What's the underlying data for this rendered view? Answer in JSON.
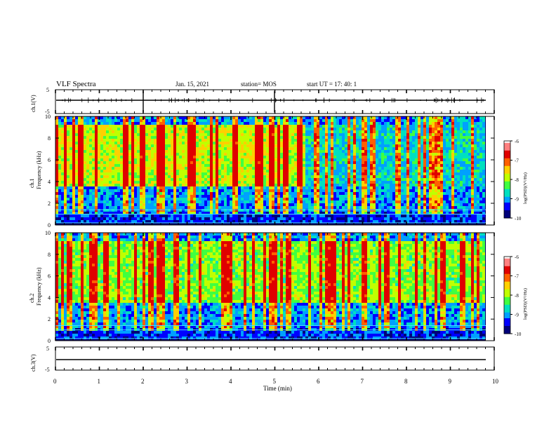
{
  "header": {
    "title": "VLF Spectra",
    "date": "Jan. 15, 2021",
    "station": "station= MOS",
    "start": "start  UT =   17: 40: 1"
  },
  "chart_data": [
    {
      "type": "line",
      "name": "ch1-waveform",
      "ylabel": "ch.1(V)",
      "ylim": [
        -5,
        5
      ],
      "yticks": [
        "5",
        "-5"
      ],
      "values_note": "",
      "baseline": -0.6
    },
    {
      "type": "heatmap",
      "name": "ch1-spectrogram",
      "ylabel": "ch.1\nFrequency (kHz)",
      "xlim": [
        0,
        10
      ],
      "ylim": [
        0,
        10
      ],
      "yticks": [
        "0",
        "2",
        "4",
        "6",
        "8",
        "10"
      ],
      "colorbar": {
        "label": "log(PSD)(V²/Hz)",
        "range": [
          -10,
          -6
        ],
        "ticks": [
          "-6",
          "-7",
          "-8",
          "-9",
          "-10"
        ]
      }
    },
    {
      "type": "heatmap",
      "name": "ch2-spectrogram",
      "ylabel": "ch.2\nFrequency (kHz)",
      "xlim": [
        0,
        10
      ],
      "ylim": [
        0,
        10
      ],
      "yticks": [
        "0",
        "2",
        "4",
        "6",
        "8",
        "10"
      ],
      "colorbar": {
        "label": "log(PSD)(V²/Hz)",
        "range": [
          -10,
          -6
        ],
        "ticks": [
          "-6",
          "-7",
          "-8",
          "-9",
          "-10"
        ]
      }
    },
    {
      "type": "line",
      "name": "ch3-waveform",
      "ylabel": "ch.3(V)",
      "ylim": [
        -5,
        5
      ],
      "yticks": [
        "5",
        "-5"
      ],
      "baseline": -1.0
    }
  ],
  "xaxis": {
    "label": "Time (min)",
    "ticks": [
      "0",
      "1",
      "2",
      "3",
      "4",
      "5",
      "6",
      "7",
      "8",
      "9",
      "10"
    ]
  },
  "colors": {
    "scale": [
      "#00007a",
      "#0000ff",
      "#00a0ff",
      "#00e0c0",
      "#40ff40",
      "#c0ff00",
      "#ffd000",
      "#ff6000",
      "#e00000",
      "#ff8080",
      "#ffffff"
    ]
  }
}
